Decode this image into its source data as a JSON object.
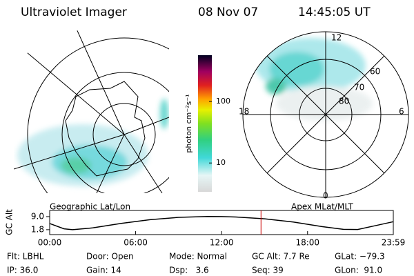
{
  "header": {
    "title": "Ultraviolet Imager",
    "date": "08 Nov 07",
    "time": "14:45:05 UT"
  },
  "panels": {
    "geo_label": "Geographic Lat/Lon",
    "polar_label": "Apex MLat/MLT",
    "mlt_labels": [
      "12",
      "18",
      "6",
      "0"
    ],
    "lat_labels": [
      "60",
      "70",
      "80"
    ]
  },
  "colorbar": {
    "label": "photon cm⁻²s⁻¹",
    "log": true,
    "lim": [
      3.4,
      565
    ],
    "ticks": [
      10,
      100
    ]
  },
  "chart_data": {
    "type": "line",
    "y_label": "GC Alt",
    "x": [
      0,
      1,
      1.6,
      3,
      5,
      7,
      9,
      11,
      12,
      13,
      15,
      17,
      19,
      20.5,
      21.5,
      23,
      23.983
    ],
    "values": [
      5.2,
      2.3,
      1.8,
      2.8,
      5.3,
      7.3,
      8.6,
      9.1,
      9.0,
      8.8,
      7.8,
      6.0,
      3.5,
      2.0,
      1.9,
      4.5,
      6.2
    ],
    "color": "#000000",
    "marker_x": 14.75,
    "marker_color": "#cc0000",
    "xlim": [
      0,
      23.983
    ],
    "xticks": [
      {
        "value": 0,
        "label": "00:00"
      },
      {
        "value": 6,
        "label": "06:00"
      },
      {
        "value": 12,
        "label": "12:00"
      },
      {
        "value": 18,
        "label": "18:00"
      },
      {
        "value": 23.983,
        "label": "23:59"
      }
    ],
    "ylim": [
      -0.9,
      12.4
    ],
    "yticks": [
      {
        "value": 1.8,
        "label": "1.8"
      },
      {
        "value": 9.0,
        "label": "9.0"
      }
    ]
  },
  "footer": {
    "rows": [
      [
        "Flt: LBHL",
        "Door: Open",
        "Mode: Normal",
        "GC Alt: 7.7 Re",
        "GLat: −79.3"
      ],
      [
        "IP: 36.0",
        "Gain: 14",
        "Dsp:   3.6",
        "Seq: 39",
        "GLon:  91.0"
      ]
    ]
  }
}
